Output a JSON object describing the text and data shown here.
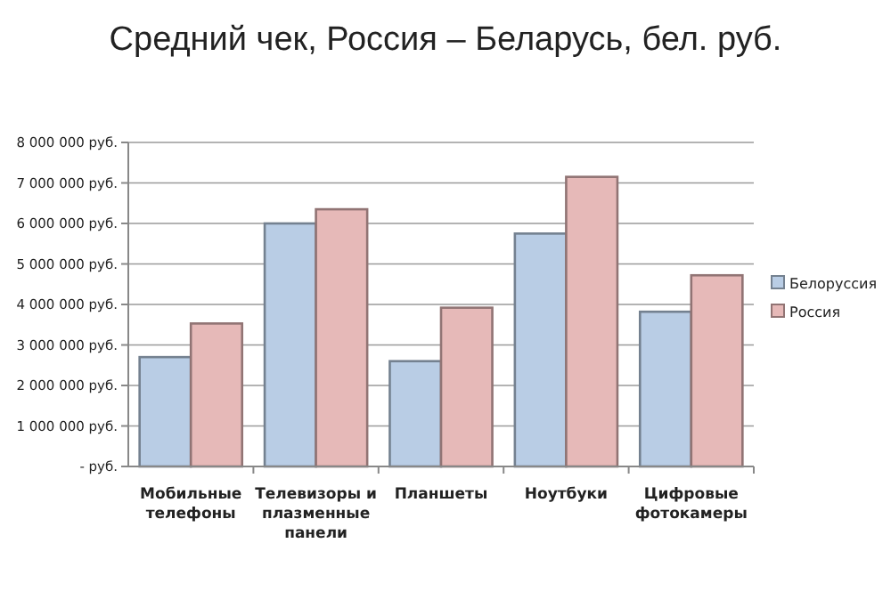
{
  "chart_data": {
    "type": "bar",
    "title": "Средний чек, Россия – Беларусь, бел. руб.",
    "categories": [
      "Мобильные телефоны",
      "Телевизоры и плазменные панели",
      "Планшеты",
      "Ноутбуки",
      "Цифровые фотокамеры"
    ],
    "series": [
      {
        "name": "Белоруссия",
        "color": "#b9cde5",
        "values": [
          2700000,
          6000000,
          2600000,
          5750000,
          3820000
        ]
      },
      {
        "name": "Россия",
        "color": "#e6b9b8",
        "values": [
          3530000,
          6350000,
          3920000,
          7150000,
          4720000
        ]
      }
    ],
    "ylim": [
      0,
      8000000
    ],
    "yticks": [
      {
        "value": 0,
        "label": "-   руб."
      },
      {
        "value": 1000000,
        "label": "1 000 000 руб."
      },
      {
        "value": 2000000,
        "label": "2 000 000 руб."
      },
      {
        "value": 3000000,
        "label": "3 000 000 руб."
      },
      {
        "value": 4000000,
        "label": "4 000 000 руб."
      },
      {
        "value": 5000000,
        "label": "5 000 000 руб."
      },
      {
        "value": 6000000,
        "label": "6 000 000 руб."
      },
      {
        "value": 7000000,
        "label": "7 000 000 руб."
      },
      {
        "value": 8000000,
        "label": "8 000 000 руб."
      }
    ],
    "grid": "y",
    "legend": "right"
  }
}
